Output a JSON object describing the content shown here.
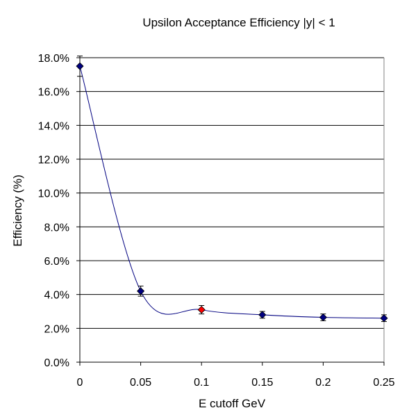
{
  "chart_data": {
    "type": "scatter",
    "title": "Upsilon Acceptance Efficiency |y| < 1",
    "xlabel": "E cutoff GeV",
    "ylabel": "Efficiency (%)",
    "xlim": [
      0,
      0.25
    ],
    "ylim": [
      0.0,
      18.0
    ],
    "x_ticks": [
      "0",
      "0.05",
      "0.1",
      "0.15",
      "0.2",
      "0.25"
    ],
    "x_tick_values": [
      0,
      0.05,
      0.1,
      0.15,
      0.2,
      0.25
    ],
    "y_ticks": [
      "0.0%",
      "2.0%",
      "4.0%",
      "6.0%",
      "8.0%",
      "10.0%",
      "12.0%",
      "14.0%",
      "16.0%",
      "18.0%"
    ],
    "y_tick_values": [
      0,
      2,
      4,
      6,
      8,
      10,
      12,
      14,
      16,
      18
    ],
    "grid": "horizontal",
    "legend": "none",
    "series": [
      {
        "x": [
          0,
          0.05,
          0.1,
          0.15,
          0.2,
          0.25
        ],
        "y": [
          17.5,
          4.2,
          3.1,
          2.8,
          2.65,
          2.6
        ],
        "y_error": [
          0.6,
          0.3,
          0.25,
          0.2,
          0.2,
          0.2
        ],
        "marker_colors": [
          "#000080",
          "#000080",
          "#ff0000",
          "#000080",
          "#000080",
          "#000080"
        ],
        "line": "smoothed"
      }
    ],
    "colors": {
      "series": "#000080",
      "highlight": "#ff0000",
      "grid": "#000000"
    }
  }
}
